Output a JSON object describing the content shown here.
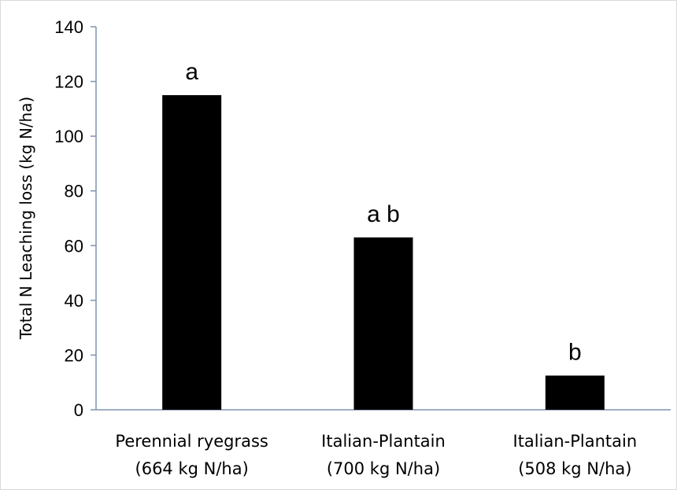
{
  "chart_data": {
    "type": "bar",
    "title": "",
    "ylabel": "Total N  Leaching loss (kg N/ha)",
    "xlabel": "",
    "ylim": [
      0,
      140
    ],
    "yticks": [
      0,
      20,
      40,
      60,
      80,
      100,
      120,
      140
    ],
    "categories": [
      [
        "Perennial ryegrass",
        "(664 kg N/ha)"
      ],
      [
        "Italian-Plantain",
        "(700 kg N/ha)"
      ],
      [
        "Italian-Plantain",
        "(508 kg N/ha)"
      ]
    ],
    "values": [
      115,
      63,
      12.5
    ],
    "annotations": [
      "a",
      "a b",
      "b"
    ],
    "bar_color": "#000000",
    "axis_color": "#7f93b0",
    "grid": false,
    "legend": "none"
  }
}
